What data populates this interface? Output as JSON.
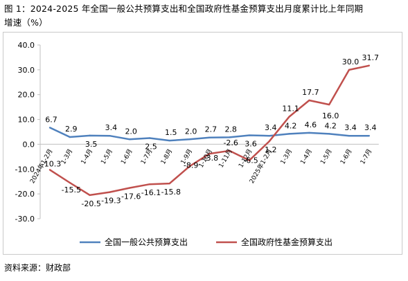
{
  "title_line1": "图 1：2024-2025 年全国一般公共预算支出和全国政府性基金预算支出月度累计比上年同期",
  "title_line2": "增速（%）",
  "source": "资料来源：财政部",
  "chart_data": {
    "type": "line",
    "categories": [
      "2024年1-2月",
      "1-3月",
      "1-4月",
      "1-5月",
      "1-6月",
      "1-7月",
      "1-8月",
      "1-9月",
      "1-10月",
      "1-11月",
      "1-12月",
      "2025年1-2月",
      "1-3月",
      "1-4月",
      "1-5月",
      "1-6月",
      "1-7月"
    ],
    "ylim": [
      -30,
      40
    ],
    "yticks": [
      "40.0",
      "30.0",
      "20.0",
      "10.0",
      "0.0",
      "-10.0",
      "-20.0",
      "-30.0"
    ],
    "series": [
      {
        "name": "全国一般公共预算支出",
        "color": "#4f81bd",
        "values": [
          6.7,
          2.9,
          3.5,
          3.4,
          2.0,
          2.5,
          1.5,
          2.0,
          2.7,
          2.8,
          3.6,
          3.4,
          4.2,
          4.6,
          4.2,
          3.4,
          3.4
        ],
        "labels": [
          "6.7",
          "2.9",
          "3.5",
          "3.4",
          "2.0",
          "2.5",
          "1.5",
          "2.0",
          "2.7",
          "2.8",
          "3.6",
          "3.4",
          "4.2",
          "4.6",
          "4.2",
          "3.4",
          "3.4"
        ]
      },
      {
        "name": "全国政府性基金预算支出",
        "color": "#c0504d",
        "values": [
          -10.3,
          -15.5,
          -20.5,
          -19.3,
          -17.6,
          -16.1,
          -15.8,
          -8.9,
          -3.8,
          -2.6,
          -6.5,
          1.2,
          11.1,
          17.7,
          16.0,
          30.0,
          31.7
        ],
        "labels": [
          "-10.3",
          "-15.5",
          "-20.5",
          "-19.3",
          "-17.6",
          "-16.1",
          "-15.8",
          "-8.9",
          "-3.8",
          "-2.6",
          "-6.5",
          "1.2",
          "11.1",
          "17.7",
          "16.0",
          "30.0",
          "31.7"
        ]
      }
    ],
    "legend_position": "bottom",
    "grid": false
  }
}
